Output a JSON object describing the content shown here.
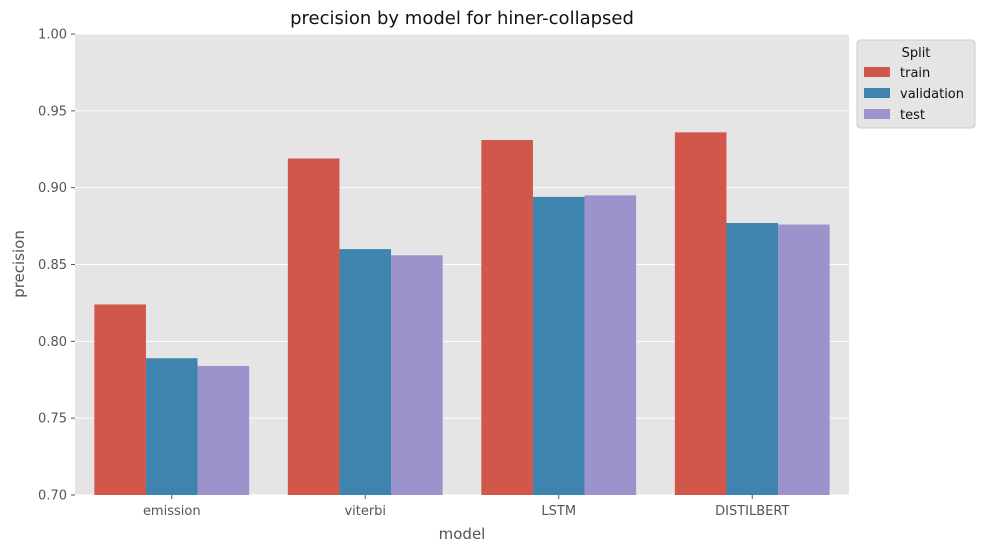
{
  "chart_data": {
    "type": "bar",
    "title": "precision by model for hiner-collapsed",
    "xlabel": "model",
    "ylabel": "precision",
    "categories": [
      "emission",
      "viterbi",
      "LSTM",
      "DISTILBERT"
    ],
    "series": [
      {
        "name": "train",
        "color": "#d0574a",
        "values": [
          0.824,
          0.919,
          0.931,
          0.936
        ]
      },
      {
        "name": "validation",
        "color": "#3f84ae",
        "values": [
          0.789,
          0.86,
          0.894,
          0.877
        ]
      },
      {
        "name": "test",
        "color": "#9c93cc",
        "values": [
          0.784,
          0.856,
          0.895,
          0.876
        ]
      }
    ],
    "ylim": [
      0.7,
      1.0
    ],
    "yticks": [
      "0.70",
      "0.75",
      "0.80",
      "0.85",
      "0.90",
      "0.95",
      "1.00"
    ],
    "grid": true,
    "legend": {
      "title": "Split",
      "placement": "outside-top-right"
    }
  }
}
